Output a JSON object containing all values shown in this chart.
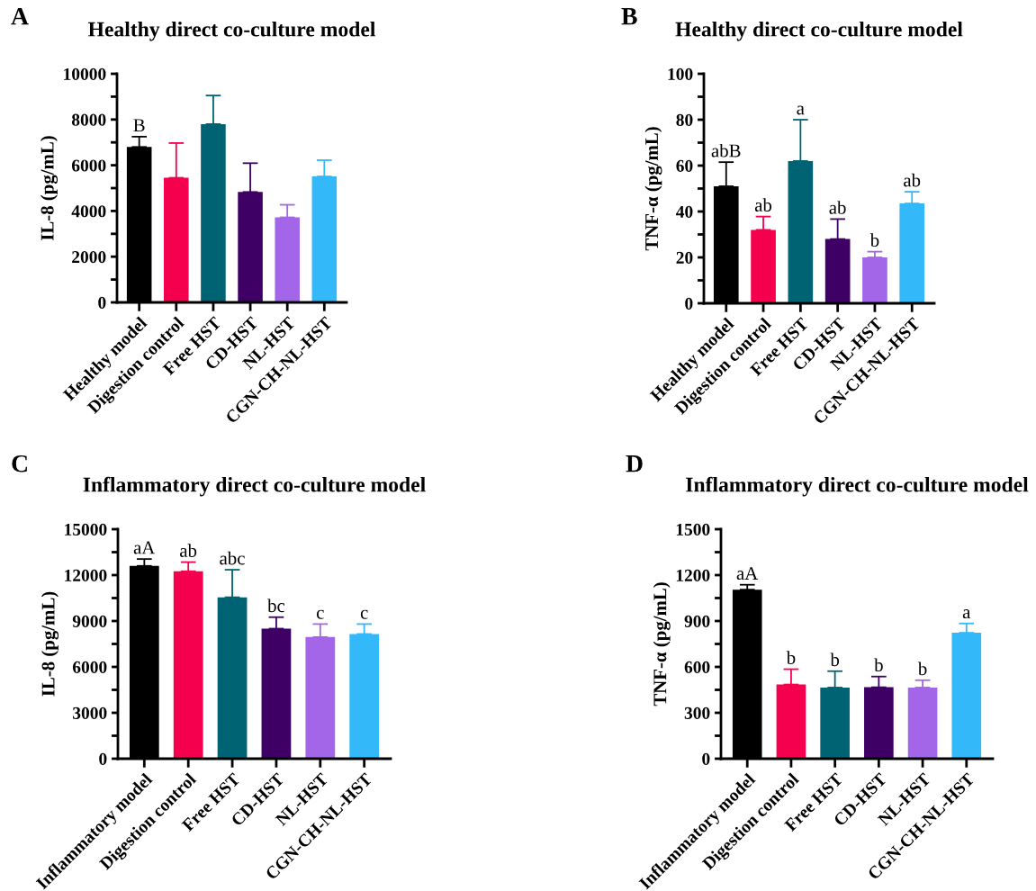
{
  "chart_data": [
    {
      "type": "bar",
      "title": "Healthy direct co-culture model",
      "ylabel": "IL-8 (pg/mL)",
      "categories": [
        "Healthy model",
        "Digestion control",
        "Free HST",
        "CD-HST",
        "NL-HST",
        "CGN-CH-NL-HST"
      ],
      "values": [
        6800,
        5450,
        7800,
        4830,
        3720,
        5510
      ],
      "errors": [
        [
          6800,
          7250
        ],
        [
          5450,
          6970
        ],
        [
          7800,
          9050
        ],
        [
          4830,
          6090
        ],
        [
          3720,
          4270
        ],
        [
          5510,
          6220
        ]
      ],
      "colors": [
        "#000000",
        "#f5004f",
        "#006374",
        "#3f0066",
        "#a466e8",
        "#33b8fa"
      ],
      "ylim": [
        0,
        10000
      ],
      "yticks": [
        0,
        {
          "value": 1000,
          "label": null
        },
        2000,
        {
          "value": 3000,
          "label": null
        },
        4000,
        {
          "value": 5000,
          "label": null
        },
        6000,
        {
          "value": 7000,
          "label": null
        },
        8000,
        {
          "value": 9000,
          "label": null
        },
        10000
      ],
      "annotations": [
        "A",
        {
          "text": "B",
          "x": "Healthy model",
          "y": 7250
        }
      ]
    },
    {
      "type": "bar",
      "title": "Healthy direct co-culture model",
      "ylabel": "TNF-α (pg/mL)",
      "categories": [
        "Healthy model",
        "Digestion control",
        "Free HST",
        "CD-HST",
        "NL-HST",
        "CGN-CH-NL-HST"
      ],
      "values": [
        51,
        32,
        62,
        28,
        20,
        43.5
      ],
      "errors": [
        [
          51,
          61.5
        ],
        [
          32,
          37.8
        ],
        [
          62,
          80
        ],
        [
          28,
          36.7
        ],
        [
          20,
          22.5
        ],
        [
          43.5,
          48.6
        ]
      ],
      "colors": [
        "#000000",
        "#f5004f",
        "#006374",
        "#3f0066",
        "#a466e8",
        "#33b8fa"
      ],
      "ylim": [
        0,
        100
      ],
      "yticks": [
        0,
        {
          "value": 10,
          "label": null
        },
        20,
        {
          "value": 30,
          "label": null
        },
        40,
        {
          "value": 50,
          "label": null
        },
        60,
        {
          "value": 70,
          "label": null
        },
        80,
        {
          "value": 90,
          "label": null
        },
        100
      ],
      "annotations": [
        "B",
        {
          "text": "abB",
          "x": "Healthy model",
          "y": 61.5
        },
        {
          "text": "ab",
          "x": "Digestion control",
          "y": 37.8
        },
        {
          "text": "a",
          "x": "Free HST",
          "y": 80
        },
        {
          "text": "ab",
          "x": "CD-HST",
          "y": 36.7
        },
        {
          "text": "b",
          "x": "NL-HST",
          "y": 22.5
        },
        {
          "text": "ab",
          "x": "CGN-CH-NL-HST",
          "y": 48.6
        }
      ]
    },
    {
      "type": "bar",
      "title": "Inflammatory direct co-culture model",
      "ylabel": "IL-8 (pg/mL)",
      "categories": [
        "Inflammatory model",
        "Digestion control",
        "Free HST",
        "CD-HST",
        "NL-HST",
        "CGN-CH-NL-HST"
      ],
      "values": [
        12600,
        12250,
        10550,
        8500,
        7950,
        8150
      ],
      "errors": [
        [
          12600,
          13050
        ],
        [
          12250,
          12850
        ],
        [
          10550,
          12350
        ],
        [
          8500,
          9250
        ],
        [
          7950,
          8800
        ],
        [
          8150,
          8800
        ]
      ],
      "colors": [
        "#000000",
        "#f5004f",
        "#006374",
        "#3f0066",
        "#a466e8",
        "#33b8fa"
      ],
      "ylim": [
        0,
        15000
      ],
      "yticks": [
        0,
        {
          "value": 1500,
          "label": null
        },
        3000,
        {
          "value": 4500,
          "label": null
        },
        6000,
        {
          "value": 7500,
          "label": null
        },
        9000,
        {
          "value": 10500,
          "label": null
        },
        12000,
        {
          "value": 13500,
          "label": null
        },
        15000
      ],
      "annotations": [
        "C",
        {
          "text": "aA",
          "x": "Inflammatory model",
          "y": 13050
        },
        {
          "text": "ab",
          "x": "Digestion control",
          "y": 12850
        },
        {
          "text": "abc",
          "x": "Free HST",
          "y": 12350
        },
        {
          "text": "bc",
          "x": "CD-HST",
          "y": 9250
        },
        {
          "text": "c",
          "x": "NL-HST",
          "y": 8800
        },
        {
          "text": "c",
          "x": "CGN-CH-NL-HST",
          "y": 8800
        }
      ]
    },
    {
      "type": "bar",
      "title": "Inflammatory direct co-culture model",
      "ylabel": "TNF-α (pg/mL)",
      "categories": [
        "Inflammatory model",
        "Digestion control",
        "Free HST",
        "CD-HST",
        "NL-HST",
        "CGN-CH-NL-HST"
      ],
      "values": [
        1105,
        485,
        465,
        467,
        465,
        823
      ],
      "errors": [
        [
          1105,
          1137
        ],
        [
          485,
          585
        ],
        [
          465,
          572
        ],
        [
          467,
          537
        ],
        [
          465,
          513
        ],
        [
          823,
          884
        ]
      ],
      "colors": [
        "#000000",
        "#f5004f",
        "#006374",
        "#3f0066",
        "#a466e8",
        "#33b8fa"
      ],
      "ylim": [
        0,
        1500
      ],
      "yticks": [
        0,
        {
          "value": 150,
          "label": null
        },
        300,
        {
          "value": 450,
          "label": null
        },
        600,
        {
          "value": 750,
          "label": null
        },
        900,
        {
          "value": 1050,
          "label": null
        },
        1200,
        {
          "value": 1350,
          "label": null
        },
        1500
      ],
      "annotations": [
        "D",
        {
          "text": "aA",
          "x": "Inflammatory model",
          "y": 1137
        },
        {
          "text": "b",
          "x": "Digestion control",
          "y": 585
        },
        {
          "text": "b",
          "x": "Free HST",
          "y": 572
        },
        {
          "text": "b",
          "x": "CD-HST",
          "y": 537
        },
        {
          "text": "b",
          "x": "NL-HST",
          "y": 513
        },
        {
          "text": "a",
          "x": "CGN-CH-NL-HST",
          "y": 884
        }
      ]
    }
  ]
}
